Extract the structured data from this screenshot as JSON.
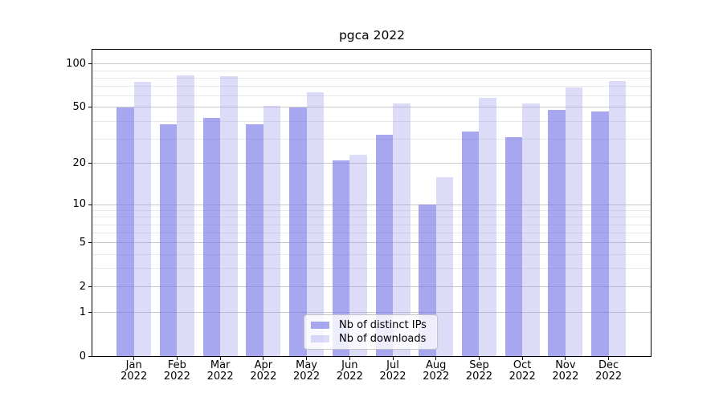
{
  "title": "pgca 2022",
  "chart_data": {
    "type": "bar",
    "title": "pgca 2022",
    "xlabel": "",
    "ylabel": "",
    "yscale": "log1p",
    "ylim": [
      0,
      124
    ],
    "grid": true,
    "legend_position": "lower center",
    "categories": [
      "Jan",
      "Feb",
      "Mar",
      "Apr",
      "May",
      "Jun",
      "Jul",
      "Aug",
      "Sep",
      "Oct",
      "Nov",
      "Dec"
    ],
    "category_year": "2022",
    "y_major_ticks": [
      0,
      1,
      2,
      5,
      10,
      20,
      50,
      100
    ],
    "y_minor_ticks": [
      3,
      4,
      6,
      7,
      8,
      9,
      30,
      40,
      60,
      70,
      80,
      90
    ],
    "series": [
      {
        "key": "distinct-ips",
        "name": "Nb of distinct IPs",
        "color": "rgba(120,120,232,0.65)",
        "values": [
          50,
          38,
          42,
          38,
          50,
          21,
          32,
          10,
          34,
          31,
          48,
          47
        ]
      },
      {
        "key": "downloads",
        "name": "Nb of downloads",
        "color": "rgba(155,155,235,0.35)",
        "values": [
          75,
          83,
          82,
          51,
          64,
          23,
          53,
          16,
          58,
          53,
          69,
          76
        ]
      }
    ],
    "colors": {
      "background": "#ffffff",
      "major_grid": "#c9c9c9",
      "minor_grid": "#e8e8e8",
      "axis": "#000000",
      "text": "#000000"
    }
  }
}
